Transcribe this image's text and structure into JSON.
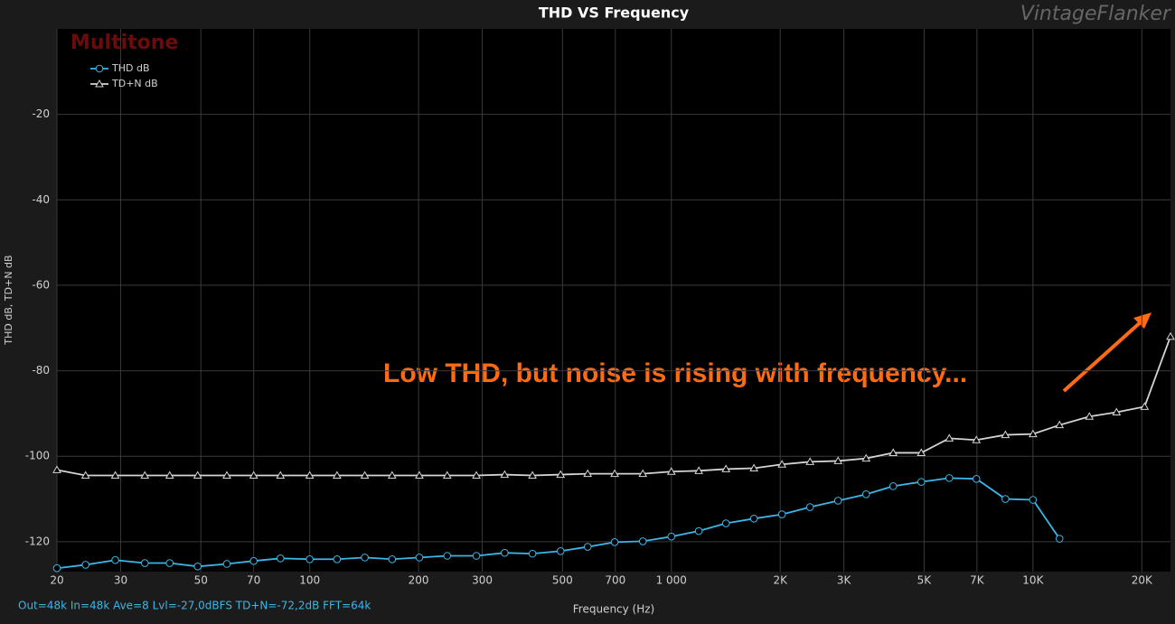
{
  "chart_data": {
    "type": "line",
    "title": "THD VS Frequency",
    "watermark": "VintageFlanker",
    "subtitle": "Multitone",
    "x_label": "Frequency (Hz)",
    "y_label": "THD dB, TD+N dB",
    "footer": "Out=48k In=48k Ave=8 Lvl=-27,0dBFS TD+N=-72,2dB FFT=64k",
    "annotation": "Low THD, but noise is rising with frequency...",
    "x_log": true,
    "grid": true,
    "legend_position": "upper left",
    "x": [
      20,
      24,
      29,
      35,
      41,
      49,
      59,
      70,
      83,
      100,
      119,
      142,
      169,
      201,
      240,
      289,
      346,
      413,
      494,
      587,
      697,
      834,
      1000,
      1191,
      1416,
      1692,
      2023,
      2418,
      2891,
      3456,
      4106,
      4910,
      5868,
      6974,
      8389,
      10000,
      11840,
      14322,
      17022,
      20348,
      24000
    ],
    "series": [
      {
        "name": "THD dB",
        "color": "#3cb6e8",
        "marker": "circle",
        "values": [
          -126.2,
          -125.4,
          -124.3,
          -125.0,
          -125.0,
          -125.8,
          -125.2,
          -124.5,
          -123.9,
          -124.1,
          -124.1,
          -123.7,
          -124.1,
          -123.7,
          -123.3,
          -123.3,
          -122.6,
          -122.8,
          -122.2,
          -121.2,
          -120.1,
          -119.9,
          -118.8,
          -117.5,
          -115.7,
          -114.6,
          -113.6,
          -111.9,
          -110.4,
          -108.9,
          -107.0,
          -106.0,
          -105.1,
          -105.3,
          -110.0,
          -110.2,
          -119.3,
          null,
          null,
          null,
          null
        ]
      },
      {
        "name": "TD+N dB",
        "color": "#d4d4d4",
        "marker": "triangle",
        "values": [
          -103.2,
          -104.5,
          -104.5,
          -104.5,
          -104.5,
          -104.5,
          -104.5,
          -104.5,
          -104.5,
          -104.5,
          -104.5,
          -104.5,
          -104.5,
          -104.5,
          -104.5,
          -104.5,
          -104.3,
          -104.5,
          -104.3,
          -104.1,
          -104.1,
          -104.1,
          -103.6,
          -103.4,
          -103.0,
          -102.8,
          -101.9,
          -101.3,
          -101.1,
          -100.5,
          -99.2,
          -99.2,
          -95.8,
          -96.2,
          -95.0,
          -94.8,
          -92.7,
          -90.7,
          -89.7,
          -88.4,
          -72.0
        ]
      }
    ],
    "xlim": [
      20,
      24000
    ],
    "ylim": [
      -127,
      0
    ],
    "xticks": [
      20,
      30,
      50,
      70,
      100,
      200,
      300,
      500,
      700,
      {
        "value": 1000,
        "label": "1 000"
      },
      {
        "value": 2000,
        "label": "2K"
      },
      {
        "value": 3000,
        "label": "3K"
      },
      {
        "value": 5000,
        "label": "5K"
      },
      {
        "value": 7000,
        "label": "7K"
      },
      {
        "value": 10000,
        "label": "10K"
      },
      {
        "value": 20000,
        "label": "20K"
      }
    ],
    "yticks": [
      -20,
      -40,
      -60,
      -80,
      -100,
      -120
    ]
  }
}
